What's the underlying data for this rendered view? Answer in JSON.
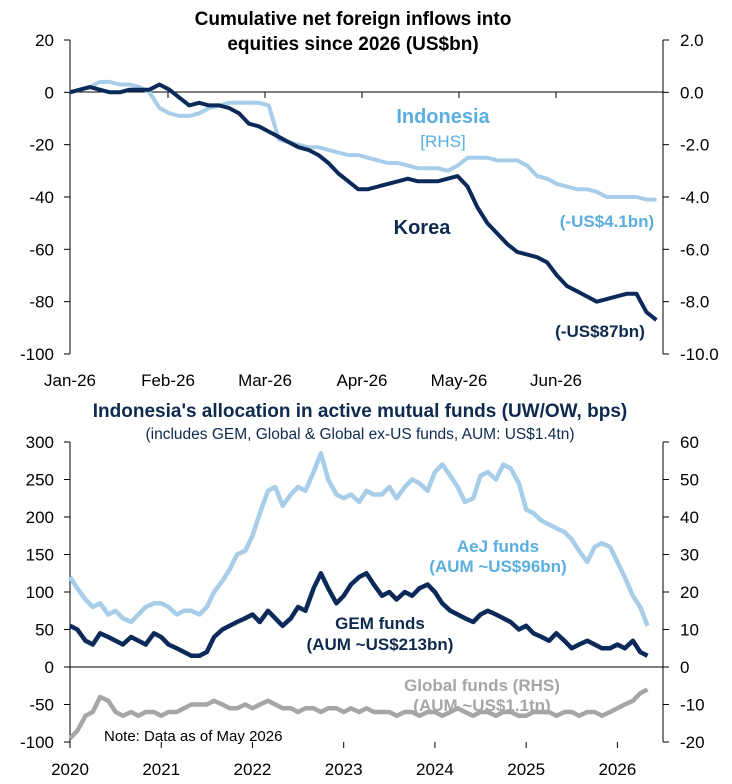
{
  "colors": {
    "korea": "#0b2a5a",
    "indonesia": "#a8cde9",
    "aej": "#a8cde9",
    "gem": "#0b2a5a",
    "global": "#a6a6a6",
    "annot_dark": "#0e2a4f",
    "annot_light": "#5aaee0",
    "annot_grey": "#a6a6a6"
  },
  "chart_data": [
    {
      "type": "line",
      "title": "Cumulative net foreign inflows into equities since 2026 (US$bn)",
      "title_lines": [
        "Cumulative net foreign inflows into",
        "equities since 2026 (US$bn)"
      ],
      "x_tick_labels": [
        "Jan-26",
        "Feb-26",
        "Mar-26",
        "Apr-26",
        "May-26",
        "Jun-26"
      ],
      "x_range": [
        0,
        179
      ],
      "left_axis": {
        "ticks": [
          20,
          0,
          -20,
          -40,
          -60,
          -80,
          -100
        ],
        "ylim": [
          -100,
          20
        ]
      },
      "right_axis": {
        "ticks": [
          "2.0",
          "0.0",
          "-2.0",
          "-4.0",
          "-6.0",
          "-8.0",
          "-10.0"
        ],
        "ylim": [
          -10,
          2
        ]
      },
      "series": [
        {
          "name": "Korea",
          "axis": "left",
          "end_label": "(-US$87bn)",
          "x": [
            0,
            3,
            6,
            9,
            12,
            15,
            18,
            21,
            24,
            27,
            30,
            33,
            36,
            39,
            42,
            45,
            48,
            51,
            54,
            57,
            60,
            63,
            66,
            69,
            72,
            75,
            78,
            81,
            84,
            87,
            90,
            93,
            96,
            99,
            102,
            105,
            108,
            111,
            114,
            117,
            120,
            123,
            126,
            129,
            132,
            135,
            138,
            141,
            144,
            147,
            150,
            153,
            156,
            159,
            162,
            165,
            168,
            171,
            174,
            177
          ],
          "values": [
            0,
            1,
            2,
            1,
            0,
            0,
            1,
            1,
            1,
            3,
            1,
            -2,
            -5,
            -4,
            -5,
            -5,
            -6,
            -8,
            -12,
            -13,
            -15,
            -17,
            -19,
            -21,
            -22,
            -24,
            -27,
            -31,
            -34,
            -37,
            -37,
            -36,
            -35,
            -34,
            -33,
            -34,
            -34,
            -34,
            -33,
            -32,
            -36,
            -44,
            -50,
            -54,
            -58,
            -61,
            -62,
            -63,
            -65,
            -70,
            -74,
            -76,
            -78,
            -80,
            -79,
            -78,
            -77,
            -77,
            -84,
            -87
          ]
        },
        {
          "name": "Indonesia",
          "legend_lines": [
            "Indonesia",
            "[RHS]"
          ],
          "axis": "right",
          "end_label": "(-US$4.1bn)",
          "x": [
            0,
            3,
            6,
            9,
            12,
            15,
            18,
            21,
            24,
            27,
            30,
            33,
            36,
            39,
            42,
            45,
            48,
            51,
            54,
            57,
            60,
            63,
            66,
            69,
            72,
            75,
            78,
            81,
            84,
            87,
            90,
            93,
            96,
            99,
            102,
            105,
            108,
            111,
            114,
            117,
            120,
            123,
            126,
            129,
            132,
            135,
            138,
            141,
            144,
            147,
            150,
            153,
            156,
            159,
            162,
            165,
            168,
            171,
            174,
            177
          ],
          "values": [
            0.0,
            0.1,
            0.2,
            0.4,
            0.4,
            0.3,
            0.3,
            0.2,
            0.0,
            -0.6,
            -0.8,
            -0.9,
            -0.9,
            -0.8,
            -0.6,
            -0.5,
            -0.4,
            -0.4,
            -0.4,
            -0.4,
            -0.5,
            -1.8,
            -1.9,
            -2.0,
            -2.1,
            -2.1,
            -2.2,
            -2.3,
            -2.4,
            -2.4,
            -2.5,
            -2.6,
            -2.7,
            -2.7,
            -2.8,
            -2.9,
            -2.9,
            -2.9,
            -3.0,
            -2.8,
            -2.5,
            -2.5,
            -2.5,
            -2.6,
            -2.6,
            -2.6,
            -2.8,
            -3.2,
            -3.3,
            -3.5,
            -3.6,
            -3.7,
            -3.7,
            -3.8,
            -4.0,
            -4.0,
            -4.0,
            -4.0,
            -4.1,
            -4.1
          ]
        }
      ]
    },
    {
      "type": "line",
      "title": "Indonesia's allocation in active mutual funds (UW/OW, bps)",
      "subtitle": "(includes GEM, Global & Global ex-US funds, AUM: US$1.4tn)",
      "x_tick_labels": [
        "2020",
        "2021",
        "2022",
        "2023",
        "2024",
        "2025",
        "2026"
      ],
      "x_range": [
        2020,
        2026.5
      ],
      "left_axis": {
        "ticks": [
          300,
          250,
          200,
          150,
          100,
          50,
          0,
          -50,
          -100
        ],
        "ylim": [
          -100,
          300
        ]
      },
      "right_axis": {
        "ticks": [
          60,
          50,
          40,
          30,
          20,
          10,
          0,
          -10,
          -20
        ],
        "ylim": [
          -20,
          60
        ]
      },
      "note": "Note: Data as of May 2026",
      "series": [
        {
          "name": "AeJ funds",
          "label_lines": [
            "AeJ funds",
            "(AUM ~US$96bn)"
          ],
          "axis": "left",
          "x": [
            2020.0,
            2020.08,
            2020.17,
            2020.25,
            2020.33,
            2020.42,
            2020.5,
            2020.58,
            2020.67,
            2020.75,
            2020.83,
            2020.92,
            2021.0,
            2021.08,
            2021.17,
            2021.25,
            2021.33,
            2021.42,
            2021.5,
            2021.58,
            2021.67,
            2021.75,
            2021.83,
            2021.92,
            2022.0,
            2022.08,
            2022.17,
            2022.25,
            2022.33,
            2022.42,
            2022.5,
            2022.58,
            2022.67,
            2022.75,
            2022.83,
            2022.92,
            2023.0,
            2023.08,
            2023.17,
            2023.25,
            2023.33,
            2023.42,
            2023.5,
            2023.58,
            2023.67,
            2023.75,
            2023.83,
            2023.92,
            2024.0,
            2024.08,
            2024.17,
            2024.25,
            2024.33,
            2024.42,
            2024.5,
            2024.58,
            2024.67,
            2024.75,
            2024.83,
            2024.92,
            2025.0,
            2025.08,
            2025.17,
            2025.25,
            2025.33,
            2025.42,
            2025.5,
            2025.58,
            2025.67,
            2025.75,
            2025.83,
            2025.92,
            2026.0,
            2026.08,
            2026.17,
            2026.25,
            2026.33
          ],
          "values": [
            120,
            105,
            90,
            80,
            85,
            70,
            75,
            65,
            60,
            70,
            80,
            85,
            85,
            80,
            70,
            75,
            75,
            70,
            80,
            100,
            115,
            130,
            150,
            155,
            175,
            205,
            235,
            240,
            215,
            230,
            240,
            235,
            260,
            285,
            250,
            230,
            225,
            230,
            220,
            235,
            230,
            230,
            240,
            225,
            240,
            250,
            245,
            235,
            260,
            270,
            255,
            240,
            220,
            225,
            255,
            260,
            250,
            270,
            265,
            245,
            210,
            205,
            195,
            190,
            185,
            180,
            170,
            155,
            140,
            160,
            165,
            160,
            140,
            120,
            95,
            80,
            55
          ]
        },
        {
          "name": "GEM funds",
          "label_lines": [
            "GEM funds",
            "(AUM ~US$213bn)"
          ],
          "axis": "left",
          "x": [
            2020.0,
            2020.08,
            2020.17,
            2020.25,
            2020.33,
            2020.42,
            2020.5,
            2020.58,
            2020.67,
            2020.75,
            2020.83,
            2020.92,
            2021.0,
            2021.08,
            2021.17,
            2021.25,
            2021.33,
            2021.42,
            2021.5,
            2021.58,
            2021.67,
            2021.75,
            2021.83,
            2021.92,
            2022.0,
            2022.08,
            2022.17,
            2022.25,
            2022.33,
            2022.42,
            2022.5,
            2022.58,
            2022.67,
            2022.75,
            2022.83,
            2022.92,
            2023.0,
            2023.08,
            2023.17,
            2023.25,
            2023.33,
            2023.42,
            2023.5,
            2023.58,
            2023.67,
            2023.75,
            2023.83,
            2023.92,
            2024.0,
            2024.08,
            2024.17,
            2024.25,
            2024.33,
            2024.42,
            2024.5,
            2024.58,
            2024.67,
            2024.75,
            2024.83,
            2024.92,
            2025.0,
            2025.08,
            2025.17,
            2025.25,
            2025.33,
            2025.42,
            2025.5,
            2025.58,
            2025.67,
            2025.75,
            2025.83,
            2025.92,
            2026.0,
            2026.08,
            2026.17,
            2026.25,
            2026.33
          ],
          "values": [
            55,
            50,
            35,
            30,
            45,
            40,
            35,
            30,
            40,
            35,
            30,
            45,
            40,
            30,
            25,
            20,
            15,
            15,
            20,
            40,
            50,
            55,
            60,
            65,
            70,
            60,
            75,
            65,
            55,
            65,
            80,
            75,
            105,
            125,
            105,
            85,
            95,
            110,
            120,
            125,
            110,
            95,
            100,
            90,
            100,
            95,
            105,
            110,
            100,
            85,
            75,
            70,
            65,
            60,
            70,
            75,
            70,
            65,
            60,
            50,
            55,
            45,
            40,
            35,
            45,
            35,
            25,
            30,
            35,
            30,
            25,
            25,
            30,
            25,
            35,
            20,
            15
          ]
        },
        {
          "name": "Global funds (RHS)",
          "label_lines": [
            "Global funds (RHS)",
            "(AUM ~US$1.1tn)"
          ],
          "axis": "right",
          "x": [
            2020.0,
            2020.08,
            2020.17,
            2020.25,
            2020.33,
            2020.42,
            2020.5,
            2020.58,
            2020.67,
            2020.75,
            2020.83,
            2020.92,
            2021.0,
            2021.08,
            2021.17,
            2021.25,
            2021.33,
            2021.42,
            2021.5,
            2021.58,
            2021.67,
            2021.75,
            2021.83,
            2021.92,
            2022.0,
            2022.08,
            2022.17,
            2022.25,
            2022.33,
            2022.42,
            2022.5,
            2022.58,
            2022.67,
            2022.75,
            2022.83,
            2022.92,
            2023.0,
            2023.08,
            2023.17,
            2023.25,
            2023.33,
            2023.42,
            2023.5,
            2023.58,
            2023.67,
            2023.75,
            2023.83,
            2023.92,
            2024.0,
            2024.08,
            2024.17,
            2024.25,
            2024.33,
            2024.42,
            2024.5,
            2024.58,
            2024.67,
            2024.75,
            2024.83,
            2024.92,
            2025.0,
            2025.08,
            2025.17,
            2025.25,
            2025.33,
            2025.42,
            2025.5,
            2025.58,
            2025.67,
            2025.75,
            2025.83,
            2025.92,
            2026.0,
            2026.08,
            2026.17,
            2026.25,
            2026.33
          ],
          "values": [
            -19,
            -17,
            -13,
            -12,
            -8,
            -9,
            -12,
            -13,
            -12,
            -13,
            -12,
            -12,
            -13,
            -12,
            -12,
            -11,
            -10,
            -10,
            -10,
            -9,
            -10,
            -11,
            -11,
            -10,
            -11,
            -10,
            -9,
            -10,
            -11,
            -11,
            -12,
            -11,
            -11,
            -12,
            -11,
            -11,
            -12,
            -11,
            -12,
            -11,
            -12,
            -12,
            -12,
            -13,
            -12,
            -12,
            -13,
            -12,
            -12,
            -13,
            -12,
            -11,
            -12,
            -13,
            -12,
            -12,
            -13,
            -12,
            -12,
            -13,
            -13,
            -12,
            -12,
            -12,
            -13,
            -12,
            -12,
            -13,
            -12,
            -12,
            -13,
            -12,
            -11,
            -10,
            -9,
            -7,
            -6
          ]
        }
      ]
    }
  ]
}
